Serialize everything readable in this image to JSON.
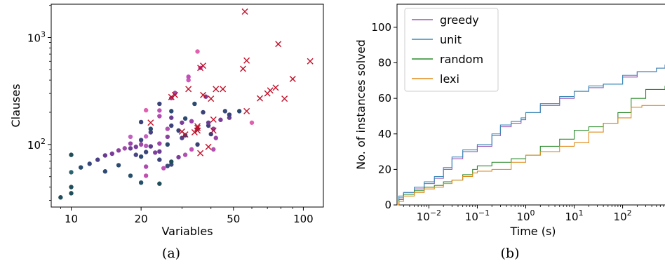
{
  "chart_data": [
    {
      "type": "scatter",
      "caption": "(a)",
      "xlabel": "Variables",
      "ylabel": "Clauses",
      "xscale": "log",
      "yscale": "log",
      "xlim": [
        8.2,
        122
      ],
      "ylim": [
        26,
        2050
      ],
      "x_major_ticks": [
        10,
        20,
        50,
        100
      ],
      "x_major_tick_labels": [
        "10",
        "20",
        "50",
        "100"
      ],
      "y_major_ticks": [
        100,
        1000
      ],
      "y_major_tick_labels": [
        "10^2",
        "10^3"
      ],
      "grid": false,
      "point_series": [
        {
          "marker": "dot",
          "points": [
            {
              "x": 9,
              "y": 32,
              "color": "#1f4e5a"
            },
            {
              "x": 10,
              "y": 35,
              "color": "#1f4e5a"
            },
            {
              "x": 10,
              "y": 40,
              "color": "#1f4e5a"
            },
            {
              "x": 10,
              "y": 55,
              "color": "#2a6470"
            },
            {
              "x": 10,
              "y": 80,
              "color": "#1f4e5a"
            },
            {
              "x": 11,
              "y": 61,
              "color": "#2a4a6e"
            },
            {
              "x": 12,
              "y": 66,
              "color": "#38477a"
            },
            {
              "x": 13,
              "y": 72,
              "color": "#4a3f84"
            },
            {
              "x": 14,
              "y": 56,
              "color": "#2e4a74"
            },
            {
              "x": 14,
              "y": 79,
              "color": "#6a3a90"
            },
            {
              "x": 15,
              "y": 82,
              "color": "#7a3c98"
            },
            {
              "x": 16,
              "y": 64,
              "color": "#2b4a70"
            },
            {
              "x": 16,
              "y": 88,
              "color": "#8a40a0"
            },
            {
              "x": 17,
              "y": 92,
              "color": "#a04aa8"
            },
            {
              "x": 18,
              "y": 51,
              "color": "#26506a"
            },
            {
              "x": 18,
              "y": 92,
              "color": "#6c3c92"
            },
            {
              "x": 18,
              "y": 102,
              "color": "#9a44a8"
            },
            {
              "x": 18,
              "y": 118,
              "color": "#c060c0"
            },
            {
              "x": 19,
              "y": 80,
              "color": "#4c4488"
            },
            {
              "x": 19,
              "y": 95,
              "color": "#7a3e98"
            },
            {
              "x": 20,
              "y": 44,
              "color": "#26506a"
            },
            {
              "x": 20,
              "y": 77,
              "color": "#2e4a74"
            },
            {
              "x": 20,
              "y": 100,
              "color": "#a048a8"
            },
            {
              "x": 20,
              "y": 110,
              "color": "#3c447c"
            },
            {
              "x": 20,
              "y": 162,
              "color": "#3a4278"
            },
            {
              "x": 21,
              "y": 51,
              "color": "#c050b0"
            },
            {
              "x": 21,
              "y": 62,
              "color": "#b04ab0"
            },
            {
              "x": 21,
              "y": 85,
              "color": "#3a467c"
            },
            {
              "x": 21,
              "y": 97,
              "color": "#b85ab8"
            },
            {
              "x": 21,
              "y": 119,
              "color": "#c860c0"
            },
            {
              "x": 21,
              "y": 209,
              "color": "#e060b0"
            },
            {
              "x": 22,
              "y": 96,
              "color": "#5c3c8a"
            },
            {
              "x": 22,
              "y": 130,
              "color": "#4a3f84"
            },
            {
              "x": 22,
              "y": 140,
              "color": "#2a4a70"
            },
            {
              "x": 23,
              "y": 84,
              "color": "#8040a0"
            },
            {
              "x": 24,
              "y": 43,
              "color": "#1f4e5a"
            },
            {
              "x": 24,
              "y": 72,
              "color": "#3c447c"
            },
            {
              "x": 24,
              "y": 86,
              "color": "#6a3c92"
            },
            {
              "x": 24,
              "y": 102,
              "color": "#9c46a8"
            },
            {
              "x": 24,
              "y": 184,
              "color": "#b24ab0"
            },
            {
              "x": 24,
              "y": 208,
              "color": "#c050b8"
            },
            {
              "x": 24,
              "y": 240,
              "color": "#3a4278"
            },
            {
              "x": 25,
              "y": 60,
              "color": "#c050b8"
            },
            {
              "x": 26,
              "y": 63,
              "color": "#3a4a78"
            },
            {
              "x": 26,
              "y": 100,
              "color": "#2a4a70"
            },
            {
              "x": 26,
              "y": 118,
              "color": "#8a42a0"
            },
            {
              "x": 26,
              "y": 140,
              "color": "#b050b0"
            },
            {
              "x": 27,
              "y": 65,
              "color": "#3a4a7c"
            },
            {
              "x": 27,
              "y": 69,
              "color": "#1f4e5a"
            },
            {
              "x": 27,
              "y": 150,
              "color": "#3a4278"
            },
            {
              "x": 27,
              "y": 178,
              "color": "#6a3c92"
            },
            {
              "x": 27,
              "y": 205,
              "color": "#2a4a70"
            },
            {
              "x": 27,
              "y": 272,
              "color": "#9040a0"
            },
            {
              "x": 28,
              "y": 303,
              "color": "#a048a8"
            },
            {
              "x": 29,
              "y": 76,
              "color": "#7a3e98"
            },
            {
              "x": 29,
              "y": 135,
              "color": "#3a4278"
            },
            {
              "x": 30,
              "y": 115,
              "color": "#4c4488"
            },
            {
              "x": 30,
              "y": 160,
              "color": "#7a3e98"
            },
            {
              "x": 31,
              "y": 80,
              "color": "#b050b0"
            },
            {
              "x": 31,
              "y": 122,
              "color": "#3a4278"
            },
            {
              "x": 31,
              "y": 175,
              "color": "#2a4a70"
            },
            {
              "x": 32,
              "y": 400,
              "color": "#d058b8"
            },
            {
              "x": 32,
              "y": 430,
              "color": "#c050b8"
            },
            {
              "x": 33,
              "y": 90,
              "color": "#c050b8"
            },
            {
              "x": 33,
              "y": 165,
              "color": "#9a44a8"
            },
            {
              "x": 34,
              "y": 240,
              "color": "#2a4a70"
            },
            {
              "x": 35,
              "y": 100,
              "color": "#3a4278"
            },
            {
              "x": 35,
              "y": 140,
              "color": "#3c447c"
            },
            {
              "x": 35,
              "y": 740,
              "color": "#e060b0"
            },
            {
              "x": 36,
              "y": 520,
              "color": "#c050b8"
            },
            {
              "x": 37,
              "y": 200,
              "color": "#3a4278"
            },
            {
              "x": 38,
              "y": 280,
              "color": "#7a3e98"
            },
            {
              "x": 39,
              "y": 150,
              "color": "#3a4278"
            },
            {
              "x": 39,
              "y": 160,
              "color": "#6a3c92"
            },
            {
              "x": 40,
              "y": 125,
              "color": "#3a4278"
            },
            {
              "x": 41,
              "y": 90,
              "color": "#b050b0"
            },
            {
              "x": 41,
              "y": 140,
              "color": "#8a42a0"
            },
            {
              "x": 42,
              "y": 115,
              "color": "#9a44a8"
            },
            {
              "x": 44,
              "y": 170,
              "color": "#7a3e98"
            },
            {
              "x": 46,
              "y": 205,
              "color": "#3a4a78"
            },
            {
              "x": 48,
              "y": 178,
              "color": "#6a3c92"
            },
            {
              "x": 48,
              "y": 190,
              "color": "#3a4278"
            },
            {
              "x": 53,
              "y": 205,
              "color": "#2a4a70"
            },
            {
              "x": 60,
              "y": 160,
              "color": "#e060b0"
            }
          ]
        },
        {
          "marker": "x",
          "color": "#c0102a",
          "points": [
            {
              "x": 22,
              "y": 160
            },
            {
              "x": 27,
              "y": 278
            },
            {
              "x": 28,
              "y": 290
            },
            {
              "x": 30,
              "y": 132
            },
            {
              "x": 31,
              "y": 124
            },
            {
              "x": 32,
              "y": 330
            },
            {
              "x": 34,
              "y": 130
            },
            {
              "x": 35,
              "y": 135
            },
            {
              "x": 35,
              "y": 143
            },
            {
              "x": 35,
              "y": 148
            },
            {
              "x": 36,
              "y": 83
            },
            {
              "x": 36,
              "y": 520
            },
            {
              "x": 37,
              "y": 545
            },
            {
              "x": 37,
              "y": 290
            },
            {
              "x": 39,
              "y": 95
            },
            {
              "x": 40,
              "y": 268
            },
            {
              "x": 41,
              "y": 171
            },
            {
              "x": 41,
              "y": 135
            },
            {
              "x": 42,
              "y": 330
            },
            {
              "x": 45,
              "y": 330
            },
            {
              "x": 55,
              "y": 510
            },
            {
              "x": 56,
              "y": 1750
            },
            {
              "x": 57,
              "y": 610
            },
            {
              "x": 57,
              "y": 205
            },
            {
              "x": 65,
              "y": 270
            },
            {
              "x": 70,
              "y": 300
            },
            {
              "x": 72,
              "y": 320
            },
            {
              "x": 76,
              "y": 340
            },
            {
              "x": 78,
              "y": 870
            },
            {
              "x": 83,
              "y": 268
            },
            {
              "x": 90,
              "y": 410
            },
            {
              "x": 107,
              "y": 600
            }
          ]
        }
      ]
    },
    {
      "type": "line",
      "caption": "(b)",
      "xlabel": "Time (s)",
      "ylabel": "No. of instances solved",
      "xscale": "log",
      "xlim": [
        0.0022,
        750
      ],
      "ylim": [
        0,
        113
      ],
      "x_major_ticks": [
        0.01,
        0.1,
        1,
        10,
        100
      ],
      "x_major_tick_labels": [
        "10^-2",
        "10^-1",
        "10^0",
        "10^1",
        "10^2"
      ],
      "y_ticks": [
        0,
        20,
        40,
        60,
        80,
        100
      ],
      "legend_position": "top-left",
      "grid": false,
      "series": [
        {
          "name": "greedy",
          "color": "#9a55b5",
          "points": [
            [
              0.0022,
              0
            ],
            [
              0.0024,
              4
            ],
            [
              0.003,
              7
            ],
            [
              0.005,
              9
            ],
            [
              0.008,
              12
            ],
            [
              0.013,
              15
            ],
            [
              0.02,
              20
            ],
            [
              0.03,
              26
            ],
            [
              0.05,
              30
            ],
            [
              0.1,
              33
            ],
            [
              0.2,
              39
            ],
            [
              0.3,
              44
            ],
            [
              0.5,
              46
            ],
            [
              0.8,
              48
            ],
            [
              1,
              52
            ],
            [
              2,
              56
            ],
            [
              5,
              60
            ],
            [
              10,
              64
            ],
            [
              20,
              66
            ],
            [
              40,
              68
            ],
            [
              100,
              72
            ],
            [
              200,
              75
            ],
            [
              500,
              77
            ],
            [
              750,
              79
            ]
          ]
        },
        {
          "name": "unit",
          "color": "#3a8ab8",
          "points": [
            [
              0.0022,
              0
            ],
            [
              0.0024,
              5
            ],
            [
              0.003,
              7
            ],
            [
              0.005,
              10
            ],
            [
              0.008,
              13
            ],
            [
              0.013,
              16
            ],
            [
              0.02,
              21
            ],
            [
              0.03,
              27
            ],
            [
              0.05,
              31
            ],
            [
              0.1,
              34
            ],
            [
              0.2,
              40
            ],
            [
              0.3,
              45
            ],
            [
              0.5,
              47
            ],
            [
              0.8,
              49
            ],
            [
              1,
              52
            ],
            [
              2,
              57
            ],
            [
              5,
              61
            ],
            [
              10,
              64
            ],
            [
              20,
              67
            ],
            [
              40,
              68
            ],
            [
              100,
              73
            ],
            [
              200,
              75
            ],
            [
              500,
              77
            ],
            [
              750,
              79
            ]
          ]
        },
        {
          "name": "random",
          "color": "#2a8a2a",
          "points": [
            [
              0.0022,
              0
            ],
            [
              0.0024,
              3
            ],
            [
              0.003,
              6
            ],
            [
              0.005,
              8
            ],
            [
              0.008,
              10
            ],
            [
              0.013,
              11
            ],
            [
              0.02,
              13
            ],
            [
              0.03,
              14
            ],
            [
              0.05,
              17
            ],
            [
              0.08,
              20
            ],
            [
              0.1,
              22
            ],
            [
              0.2,
              24
            ],
            [
              0.5,
              26
            ],
            [
              1,
              28
            ],
            [
              2,
              33
            ],
            [
              5,
              37
            ],
            [
              10,
              42
            ],
            [
              20,
              44
            ],
            [
              40,
              46
            ],
            [
              80,
              52
            ],
            [
              150,
              60
            ],
            [
              300,
              65
            ],
            [
              750,
              67
            ]
          ]
        },
        {
          "name": "lexi",
          "color": "#e08a1a",
          "points": [
            [
              0.0022,
              0
            ],
            [
              0.0024,
              2
            ],
            [
              0.003,
              5
            ],
            [
              0.005,
              7
            ],
            [
              0.008,
              9
            ],
            [
              0.013,
              10
            ],
            [
              0.02,
              12
            ],
            [
              0.03,
              14
            ],
            [
              0.05,
              16
            ],
            [
              0.08,
              18
            ],
            [
              0.1,
              19
            ],
            [
              0.2,
              20
            ],
            [
              0.5,
              24
            ],
            [
              1,
              28
            ],
            [
              2,
              30
            ],
            [
              5,
              33
            ],
            [
              10,
              35
            ],
            [
              20,
              41
            ],
            [
              40,
              46
            ],
            [
              80,
              49
            ],
            [
              150,
              55
            ],
            [
              250,
              56
            ],
            [
              750,
              56
            ]
          ]
        }
      ]
    }
  ]
}
